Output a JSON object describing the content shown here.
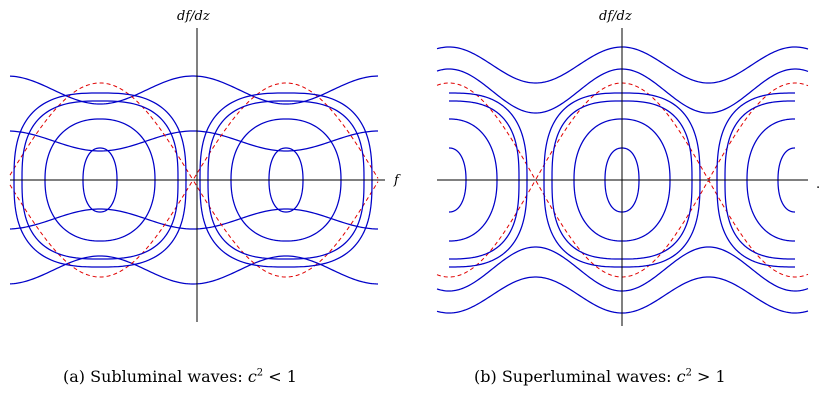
{
  "panels": [
    {
      "id": "a",
      "y_axis_label": "df/dz",
      "x_axis_label": "f",
      "caption_prefix": "(a) Subluminal waves: ",
      "caption_var": "c",
      "caption_exp": "2",
      "caption_rel": " < 1",
      "colors": {
        "orbit": "#0000c8",
        "separatrix": "#e00000"
      }
    },
    {
      "id": "b",
      "y_axis_label": "df/dz",
      "x_axis_label": "",
      "trailing_mark": ".",
      "caption_prefix": "(b) Superluminal waves: ",
      "caption_var": "c",
      "caption_exp": "2",
      "caption_rel": " > 1",
      "colors": {
        "orbit": "#0000c8",
        "separatrix": "#e00000"
      }
    }
  ]
}
